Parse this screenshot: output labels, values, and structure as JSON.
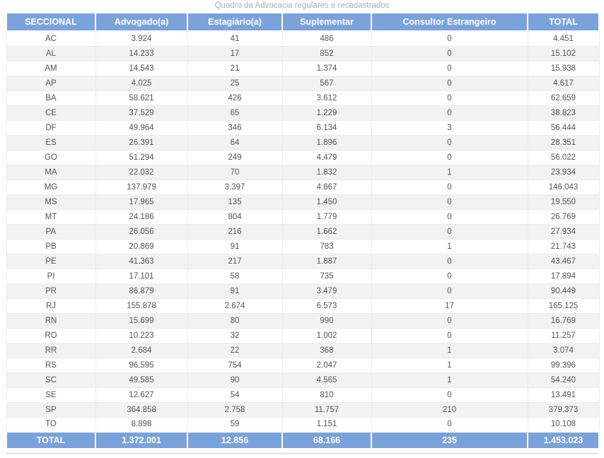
{
  "title": "Quadro da Advocacia regulares e recadastrados",
  "colors": {
    "header_bg": "#7aa3dc",
    "alt_row_bg": "#f2f2f2",
    "title_color": "#a3aebe",
    "body_text": "#555555",
    "grid_border": "#ececec"
  },
  "chart_data": {
    "type": "table",
    "title": "Quadro da Advocacia regulares e recadastrados",
    "columns": [
      "SECCIONAL",
      "Advogado(a)",
      "Estagiário(a)",
      "Suplementar",
      "Consultor Estrangeiro",
      "TOTAL"
    ],
    "rows": [
      [
        "AC",
        "3.924",
        "41",
        "486",
        "0",
        "4.451"
      ],
      [
        "AL",
        "14.233",
        "17",
        "852",
        "0",
        "15.102"
      ],
      [
        "AM",
        "14.543",
        "21",
        "1.374",
        "0",
        "15.938"
      ],
      [
        "AP",
        "4.025",
        "25",
        "567",
        "0",
        "4.617"
      ],
      [
        "BA",
        "58.621",
        "426",
        "3.612",
        "0",
        "62.659"
      ],
      [
        "CE",
        "37.529",
        "65",
        "1.229",
        "0",
        "38.823"
      ],
      [
        "DF",
        "49.964",
        "346",
        "6.134",
        "3",
        "56.444"
      ],
      [
        "ES",
        "26.391",
        "64",
        "1.896",
        "0",
        "28.351"
      ],
      [
        "GO",
        "51.294",
        "249",
        "4.479",
        "0",
        "56.022"
      ],
      [
        "MA",
        "22.032",
        "70",
        "1.832",
        "1",
        "23.934"
      ],
      [
        "MG",
        "137.979",
        "3.397",
        "4.667",
        "0",
        "146.043"
      ],
      [
        "MS",
        "17.965",
        "135",
        "1.450",
        "0",
        "19.550"
      ],
      [
        "MT",
        "24.186",
        "804",
        "1.779",
        "0",
        "26.769"
      ],
      [
        "PA",
        "26.056",
        "216",
        "1.662",
        "0",
        "27.934"
      ],
      [
        "PB",
        "20.869",
        "91",
        "783",
        "1",
        "21.743"
      ],
      [
        "PE",
        "41.363",
        "217",
        "1.887",
        "0",
        "43.467"
      ],
      [
        "PI",
        "17.101",
        "58",
        "735",
        "0",
        "17.894"
      ],
      [
        "PR",
        "86.879",
        "91",
        "3.479",
        "0",
        "90.449"
      ],
      [
        "RJ",
        "155.878",
        "2.674",
        "6.573",
        "17",
        "165.125"
      ],
      [
        "RN",
        "15.699",
        "80",
        "990",
        "0",
        "16.769"
      ],
      [
        "RO",
        "10.223",
        "32",
        "1.002",
        "0",
        "11.257"
      ],
      [
        "RR",
        "2.684",
        "22",
        "368",
        "1",
        "3.074"
      ],
      [
        "RS",
        "96.595",
        "754",
        "2.047",
        "1",
        "99.396"
      ],
      [
        "SC",
        "49.585",
        "90",
        "4.565",
        "1",
        "54.240"
      ],
      [
        "SE",
        "12.627",
        "54",
        "810",
        "0",
        "13.491"
      ],
      [
        "SP",
        "364.858",
        "2.758",
        "11.757",
        "210",
        "379.373"
      ],
      [
        "TO",
        "8.898",
        "59",
        "1.151",
        "0",
        "10.108"
      ]
    ],
    "total_row": [
      "TOTAL",
      "1.372.001",
      "12.856",
      "68.166",
      "235",
      "1.453.023"
    ]
  }
}
